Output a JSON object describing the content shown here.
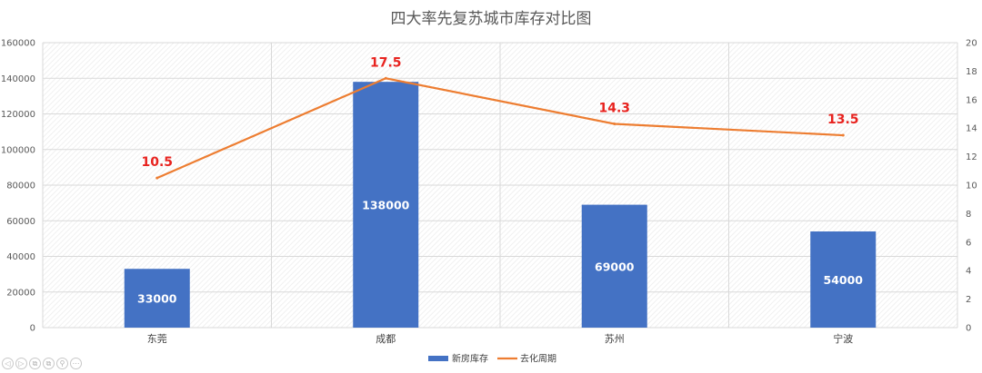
{
  "chart_data": {
    "type": "bar",
    "title": "四大率先复苏城市库存对比图",
    "categories": [
      "东莞",
      "成都",
      "苏州",
      "宁波"
    ],
    "series": [
      {
        "name": "新房库存",
        "type": "bar",
        "axis": "left",
        "values": [
          33000,
          138000,
          69000,
          54000
        ],
        "color": "#4472c4"
      },
      {
        "name": "去化周期",
        "type": "line",
        "axis": "right",
        "values": [
          10.5,
          17.5,
          14.3,
          13.5
        ],
        "color": "#ed7d31"
      }
    ],
    "bar_data_labels": [
      "33000",
      "138000",
      "69000",
      "54000"
    ],
    "line_data_labels": [
      "10.5",
      "17.5",
      "14.3",
      "13.5"
    ],
    "y_left": {
      "min": 0,
      "max": 160000,
      "ticks": [
        "0",
        "20000",
        "40000",
        "60000",
        "80000",
        "100000",
        "120000",
        "140000",
        "160000"
      ]
    },
    "y_right": {
      "min": 0,
      "max": 20,
      "ticks": [
        "0",
        "2",
        "4",
        "6",
        "8",
        "10",
        "12",
        "14",
        "16",
        "18",
        "20"
      ]
    },
    "grid": true,
    "legend_position": "bottom"
  },
  "toolbar": {
    "icons": [
      {
        "name": "prev-icon",
        "glyph": "◁"
      },
      {
        "name": "play-icon",
        "glyph": "▷"
      },
      {
        "name": "copy-icon",
        "glyph": "⧉"
      },
      {
        "name": "copy2-icon",
        "glyph": "⧉"
      },
      {
        "name": "zoom-icon",
        "glyph": "⚲"
      },
      {
        "name": "more-icon",
        "glyph": "⋯"
      }
    ]
  }
}
